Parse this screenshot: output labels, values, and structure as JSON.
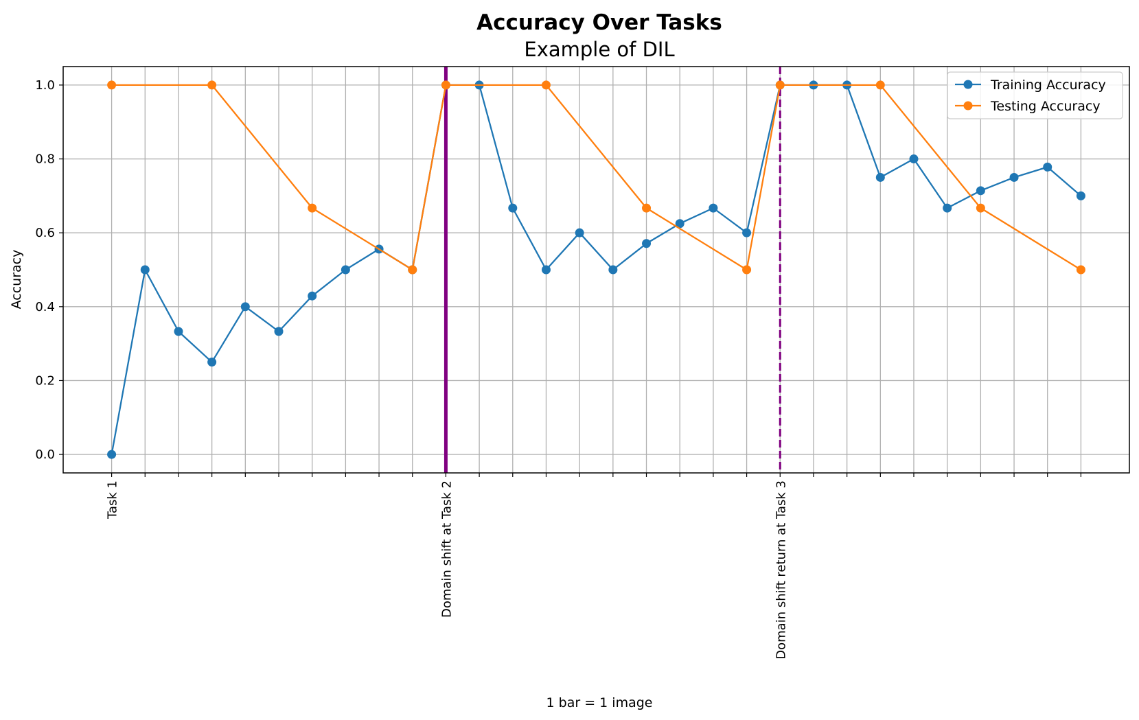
{
  "chart_data": {
    "type": "line",
    "title": "Accuracy Over Tasks",
    "subtitle": "Example of DIL",
    "xlabel": "1 bar = 1 image",
    "ylabel": "Accuracy",
    "ylim": [
      -0.05,
      1.05
    ],
    "xlim": [
      -1.45,
      30.45
    ],
    "yticks": [
      0.0,
      0.2,
      0.4,
      0.6,
      0.8,
      1.0
    ],
    "yticklabels": [
      "0.0",
      "0.2",
      "0.4",
      "0.6",
      "0.8",
      "1.0"
    ],
    "xticks": [
      0,
      1,
      2,
      3,
      4,
      5,
      6,
      7,
      8,
      9,
      10,
      11,
      12,
      13,
      14,
      15,
      16,
      17,
      18,
      19,
      20,
      21,
      22,
      23,
      24,
      25,
      26,
      27,
      28,
      29
    ],
    "xticklabels": [
      {
        "x": 0,
        "label": "Task 1"
      },
      {
        "x": 10,
        "label": "Domain shift at Task 2"
      },
      {
        "x": 20,
        "label": "Domain shift return at Task 3"
      }
    ],
    "grid": true,
    "legend_position": "upper right",
    "series": [
      {
        "name": "Training Accuracy",
        "color": "#1f77b4",
        "x": [
          0,
          1,
          2,
          3,
          4,
          5,
          6,
          7,
          8,
          9,
          10,
          11,
          12,
          13,
          14,
          15,
          16,
          17,
          18,
          19,
          20,
          21,
          22,
          23,
          24,
          25,
          26,
          27,
          28,
          29
        ],
        "y": [
          0.0,
          0.5,
          0.333,
          0.25,
          0.4,
          0.333,
          0.429,
          0.5,
          0.556,
          0.5,
          1.0,
          1.0,
          0.667,
          0.5,
          0.6,
          0.5,
          0.571,
          0.625,
          0.667,
          0.6,
          1.0,
          1.0,
          1.0,
          0.75,
          0.8,
          0.667,
          0.714,
          0.75,
          0.778,
          0.7
        ]
      },
      {
        "name": "Testing Accuracy",
        "color": "#ff7f0e",
        "x": [
          0,
          3,
          6,
          9,
          10,
          13,
          16,
          19,
          20,
          23,
          26,
          29
        ],
        "y": [
          1.0,
          1.0,
          0.667,
          0.5,
          1.0,
          1.0,
          0.667,
          0.5,
          1.0,
          1.0,
          0.667,
          0.5
        ]
      }
    ],
    "vertical_lines": [
      {
        "x": 10,
        "style": "solid",
        "color": "#800080"
      },
      {
        "x": 20,
        "style": "dashed",
        "color": "#800080"
      }
    ]
  }
}
